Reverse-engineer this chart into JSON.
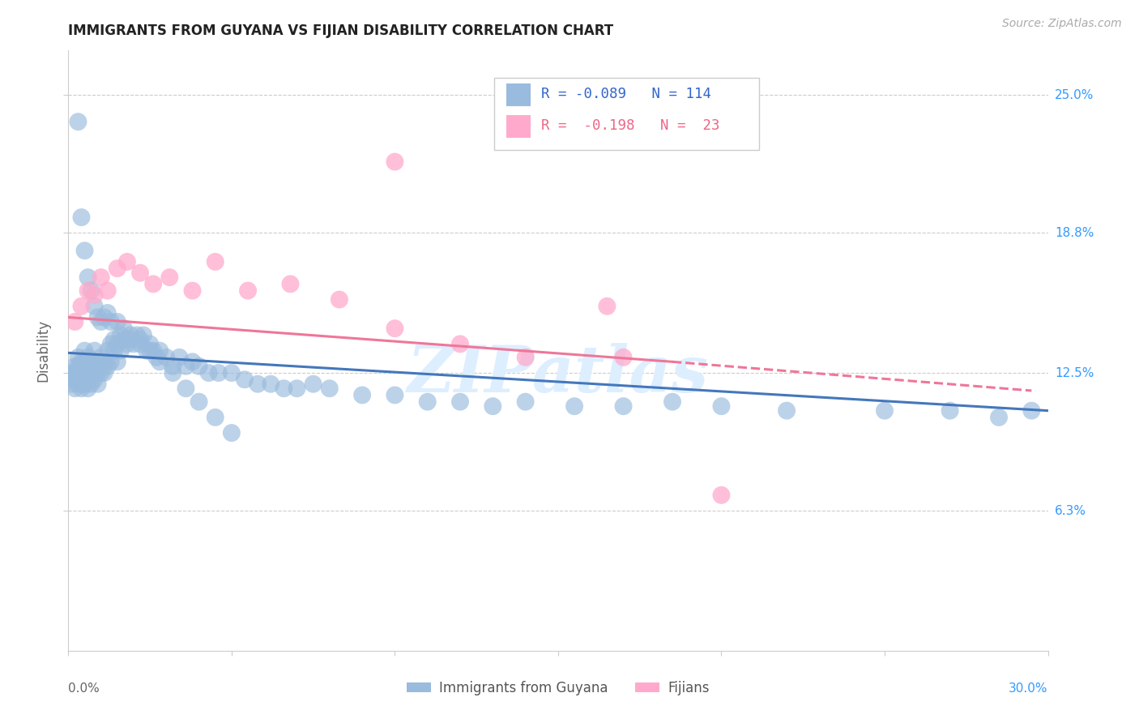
{
  "title": "IMMIGRANTS FROM GUYANA VS FIJIAN DISABILITY CORRELATION CHART",
  "source": "Source: ZipAtlas.com",
  "ylabel": "Disability",
  "xlim": [
    0.0,
    0.3
  ],
  "ylim": [
    0.0,
    0.27
  ],
  "yticks": [
    0.063,
    0.125,
    0.188,
    0.25
  ],
  "ytick_labels": [
    "6.3%",
    "12.5%",
    "18.8%",
    "25.0%"
  ],
  "xticks": [
    0.0,
    0.05,
    0.1,
    0.15,
    0.2,
    0.25,
    0.3
  ],
  "blue_R": "-0.089",
  "blue_N": "114",
  "pink_R": "-0.198",
  "pink_N": "23",
  "blue_color": "#99BBDD",
  "pink_color": "#FFAACC",
  "blue_line_color": "#4477BB",
  "pink_line_color": "#EE7799",
  "watermark": "ZIPatlas",
  "legend_label_blue": "Immigrants from Guyana",
  "legend_label_pink": "Fijians",
  "blue_scatter_x": [
    0.001,
    0.001,
    0.001,
    0.002,
    0.002,
    0.002,
    0.002,
    0.003,
    0.003,
    0.003,
    0.003,
    0.003,
    0.004,
    0.004,
    0.004,
    0.004,
    0.005,
    0.005,
    0.005,
    0.005,
    0.005,
    0.006,
    0.006,
    0.006,
    0.006,
    0.007,
    0.007,
    0.007,
    0.008,
    0.008,
    0.008,
    0.009,
    0.009,
    0.009,
    0.01,
    0.01,
    0.01,
    0.011,
    0.011,
    0.012,
    0.012,
    0.013,
    0.013,
    0.014,
    0.014,
    0.015,
    0.015,
    0.016,
    0.016,
    0.017,
    0.018,
    0.019,
    0.02,
    0.021,
    0.022,
    0.023,
    0.024,
    0.025,
    0.026,
    0.027,
    0.028,
    0.03,
    0.032,
    0.034,
    0.036,
    0.038,
    0.04,
    0.043,
    0.046,
    0.05,
    0.054,
    0.058,
    0.062,
    0.066,
    0.07,
    0.075,
    0.08,
    0.09,
    0.1,
    0.11,
    0.12,
    0.13,
    0.14,
    0.155,
    0.17,
    0.185,
    0.2,
    0.22,
    0.25,
    0.27,
    0.285,
    0.295,
    0.003,
    0.004,
    0.005,
    0.006,
    0.007,
    0.008,
    0.009,
    0.01,
    0.011,
    0.012,
    0.013,
    0.015,
    0.017,
    0.019,
    0.022,
    0.025,
    0.028,
    0.032,
    0.036,
    0.04,
    0.045,
    0.05
  ],
  "blue_scatter_y": [
    0.125,
    0.122,
    0.12,
    0.118,
    0.125,
    0.122,
    0.128,
    0.125,
    0.122,
    0.12,
    0.128,
    0.132,
    0.125,
    0.13,
    0.12,
    0.118,
    0.125,
    0.13,
    0.12,
    0.128,
    0.135,
    0.125,
    0.122,
    0.118,
    0.132,
    0.13,
    0.125,
    0.12,
    0.128,
    0.135,
    0.122,
    0.128,
    0.125,
    0.12,
    0.132,
    0.128,
    0.125,
    0.13,
    0.125,
    0.135,
    0.128,
    0.138,
    0.13,
    0.14,
    0.135,
    0.138,
    0.13,
    0.142,
    0.135,
    0.14,
    0.138,
    0.14,
    0.138,
    0.142,
    0.138,
    0.142,
    0.135,
    0.138,
    0.135,
    0.132,
    0.135,
    0.132,
    0.128,
    0.132,
    0.128,
    0.13,
    0.128,
    0.125,
    0.125,
    0.125,
    0.122,
    0.12,
    0.12,
    0.118,
    0.118,
    0.12,
    0.118,
    0.115,
    0.115,
    0.112,
    0.112,
    0.11,
    0.112,
    0.11,
    0.11,
    0.112,
    0.11,
    0.108,
    0.108,
    0.108,
    0.105,
    0.108,
    0.238,
    0.195,
    0.18,
    0.168,
    0.162,
    0.155,
    0.15,
    0.148,
    0.15,
    0.152,
    0.148,
    0.148,
    0.145,
    0.142,
    0.14,
    0.135,
    0.13,
    0.125,
    0.118,
    0.112,
    0.105,
    0.098
  ],
  "pink_scatter_x": [
    0.002,
    0.004,
    0.006,
    0.008,
    0.01,
    0.012,
    0.015,
    0.018,
    0.022,
    0.026,
    0.031,
    0.038,
    0.045,
    0.055,
    0.068,
    0.083,
    0.1,
    0.12,
    0.14,
    0.165,
    0.2,
    0.17,
    0.1
  ],
  "pink_scatter_y": [
    0.148,
    0.155,
    0.162,
    0.16,
    0.168,
    0.162,
    0.172,
    0.175,
    0.17,
    0.165,
    0.168,
    0.162,
    0.175,
    0.162,
    0.165,
    0.158,
    0.145,
    0.138,
    0.132,
    0.155,
    0.07,
    0.132,
    0.22
  ],
  "blue_line_x0": 0.0,
  "blue_line_x1": 0.3,
  "blue_line_y0": 0.134,
  "blue_line_y1": 0.108,
  "pink_line_solid_x0": 0.0,
  "pink_line_solid_x1": 0.185,
  "pink_line_solid_y0": 0.15,
  "pink_line_solid_y1": 0.13,
  "pink_line_dash_x0": 0.185,
  "pink_line_dash_x1": 0.295,
  "pink_line_dash_y0": 0.13,
  "pink_line_dash_y1": 0.117
}
